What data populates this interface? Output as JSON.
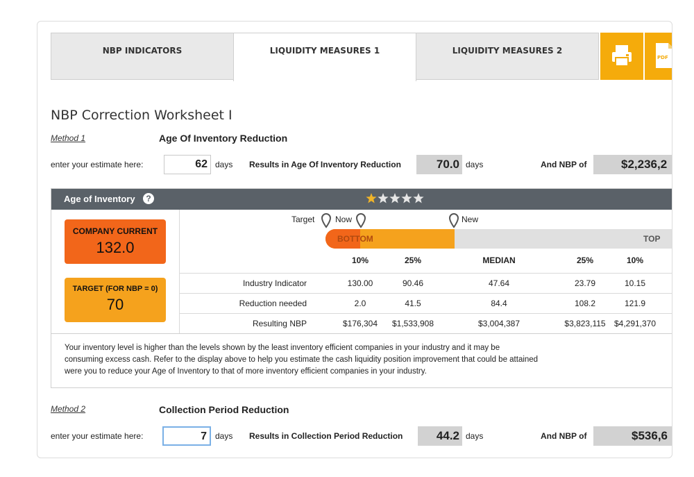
{
  "tabs": [
    {
      "label": "NBP INDICATORS"
    },
    {
      "label": "LIQUIDITY MEASURES 1"
    },
    {
      "label": "LIQUIDITY MEASURES 2"
    }
  ],
  "pdf_label": "PDF",
  "worksheet_title": "NBP Correction Worksheet I",
  "method1": {
    "label": "Method 1",
    "title": "Age Of Inventory Reduction",
    "estimate_label": "enter your estimate here:",
    "estimate_value": "62",
    "unit": "days",
    "results_label": "Results in Age Of Inventory Reduction",
    "results_value": "70.0",
    "nbp_label": "And NBP of",
    "nbp_value": "$2,236,2"
  },
  "panel": {
    "title": "Age of Inventory",
    "help": "?",
    "rating": 1,
    "rating_max": 5,
    "company_current_label": "COMPANY CURRENT",
    "company_current_value": "132.0",
    "target_label": "TARGET (FOR NBP = 0)",
    "target_value": "70",
    "pins": {
      "target": "Target",
      "now": "Now",
      "new": "New"
    },
    "bar_bottom": "BOTTOM",
    "bar_top": "TOP",
    "columns": [
      "10%",
      "25%",
      "MEDIAN",
      "25%",
      "10%"
    ],
    "rows": [
      {
        "label": "Industry Indicator",
        "values": [
          "130.00",
          "90.46",
          "47.64",
          "23.79",
          "10.15"
        ]
      },
      {
        "label": "Reduction needed",
        "values": [
          "2.0",
          "41.5",
          "84.4",
          "108.2",
          "121.9"
        ]
      },
      {
        "label": "Resulting NBP",
        "values": [
          "$176,304",
          "$1,533,908",
          "$3,004,387",
          "$3,823,115",
          "$4,291,370"
        ]
      }
    ],
    "description_1": "Your inventory level is higher than the levels shown by the least inventory efficient companies in your industry and it may be",
    "description_2": "consuming excess cash. Refer to the display above to help you estimate the cash liquidity position improvement that could be attained",
    "description_3": "were you to reduce your Age of Inventory to that of more inventory efficient companies in your industry."
  },
  "method2": {
    "label": "Method 2",
    "title": "Collection Period Reduction",
    "estimate_label": "enter your estimate here:",
    "estimate_value": "7",
    "unit": "days",
    "results_label": "Results in Collection Period Reduction",
    "results_value": "44.2",
    "nbp_label": "And NBP of",
    "nbp_value": "$536,6"
  },
  "colors": {
    "accent": "#f5ab0b",
    "company": "#f2661a",
    "target": "#f5a21d",
    "header": "#5a6168",
    "star": "#f0b429"
  },
  "icons": [
    "print-icon",
    "pdf-icon",
    "help-icon",
    "map-pin-icon",
    "star-icon"
  ]
}
